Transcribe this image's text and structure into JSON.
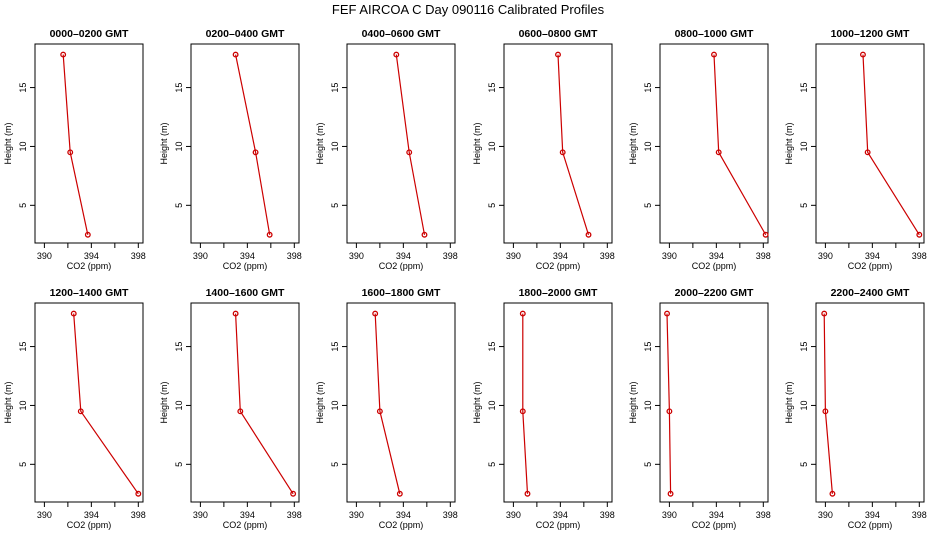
{
  "title": "FEF  AIRCOA C  Day 090116  Calibrated Profiles",
  "colors": {
    "series": "#cc0000",
    "axis": "#000000",
    "background": "#ffffff"
  },
  "chart_data": {
    "type": "line",
    "layout": "small-multiples 2 rows x 6 columns",
    "xlabel": "CO2 (ppm)",
    "ylabel": "Height (m)",
    "xlim": [
      389.2,
      398.4
    ],
    "ylim": [
      1.8,
      18.7
    ],
    "xticks": [
      390,
      392,
      394,
      396,
      398
    ],
    "xtick_labels": [
      "390",
      "394",
      "398"
    ],
    "yticks": [
      5,
      10,
      15
    ],
    "heights": [
      2.5,
      9.5,
      17.8
    ],
    "panels": [
      {
        "title": "0000–0200 GMT",
        "co2": [
          393.7,
          392.2,
          391.6
        ]
      },
      {
        "title": "0200–0400 GMT",
        "co2": [
          395.9,
          394.7,
          393.0
        ]
      },
      {
        "title": "0400–0600 GMT",
        "co2": [
          395.8,
          394.5,
          393.4
        ]
      },
      {
        "title": "0600–0800 GMT",
        "co2": [
          396.4,
          394.2,
          393.8
        ]
      },
      {
        "title": "0800–1000 GMT",
        "co2": [
          398.2,
          394.2,
          393.8
        ]
      },
      {
        "title": "1000–1200 GMT",
        "co2": [
          398.0,
          393.6,
          393.2
        ]
      },
      {
        "title": "1200–1400 GMT",
        "co2": [
          398.0,
          393.1,
          392.5
        ]
      },
      {
        "title": "1400–1600 GMT",
        "co2": [
          397.9,
          393.4,
          393.0
        ]
      },
      {
        "title": "1600–1800 GMT",
        "co2": [
          393.7,
          392.0,
          391.6
        ]
      },
      {
        "title": "1800–2000 GMT",
        "co2": [
          391.2,
          390.8,
          390.8
        ]
      },
      {
        "title": "2000–2200 GMT",
        "co2": [
          390.1,
          390.0,
          389.8
        ]
      },
      {
        "title": "2200–2400 GMT",
        "co2": [
          390.6,
          390.0,
          389.9
        ]
      }
    ]
  }
}
